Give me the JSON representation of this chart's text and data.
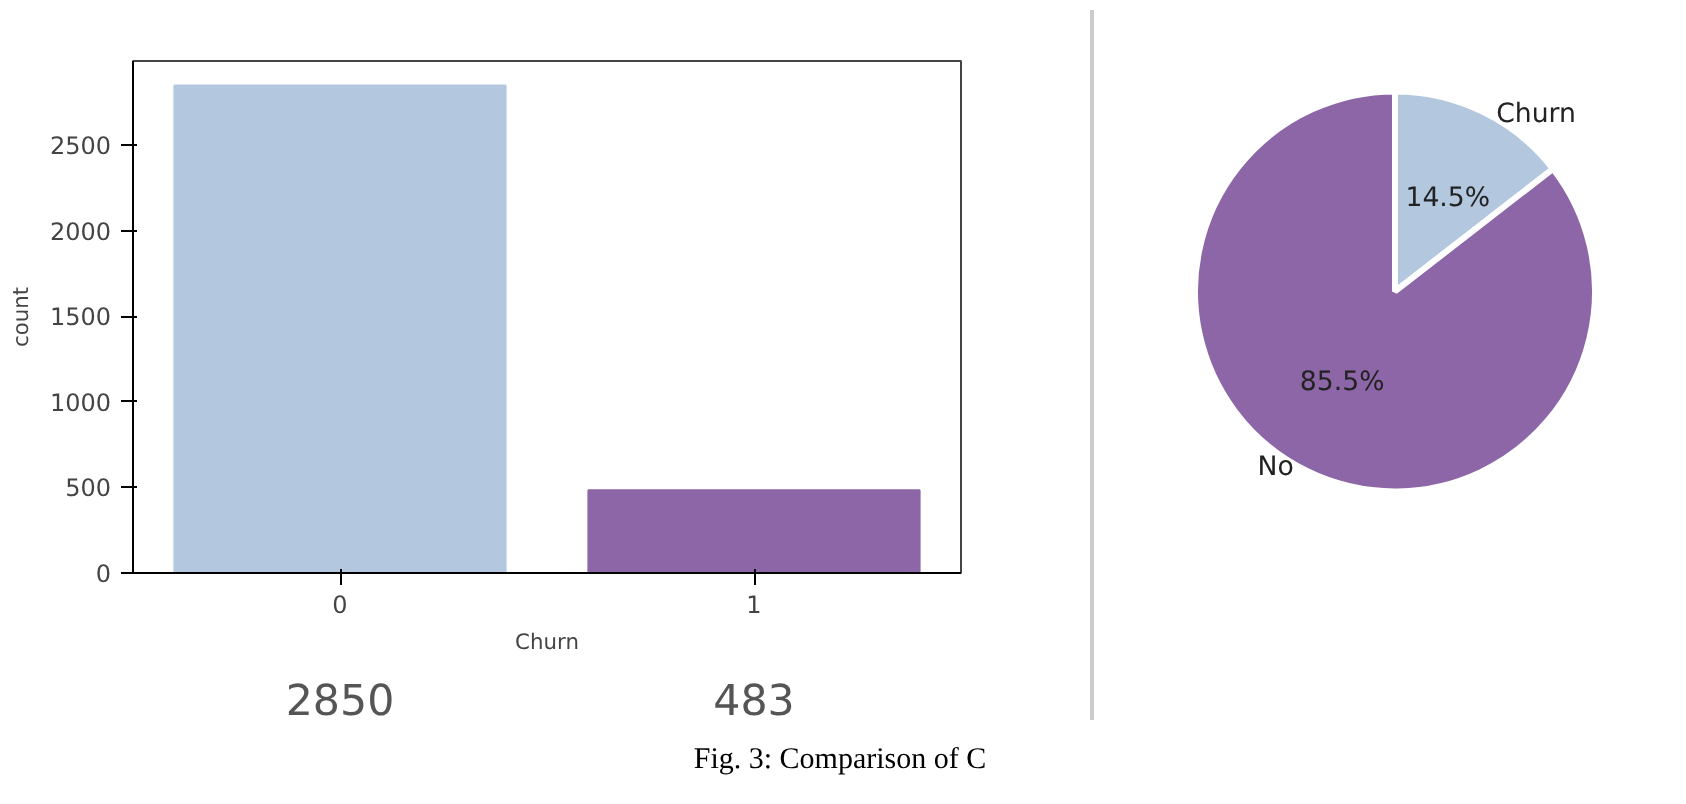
{
  "chart_data": [
    {
      "type": "bar",
      "xlabel": "Churn",
      "ylabel": "count",
      "categories": [
        "0",
        "1"
      ],
      "values": [
        2850,
        483
      ],
      "colors": [
        "#b3c7de",
        "#8c66a6"
      ],
      "ylim": [
        0,
        2992.5
      ],
      "yticks": [
        0,
        500,
        1000,
        1500,
        2000,
        2500
      ],
      "grid": false,
      "data_labels": true,
      "annotations": [
        "Fig. 3: Comparison of C"
      ]
    },
    {
      "type": "pie",
      "categories": [
        "Churn",
        "No"
      ],
      "values": [
        14.5,
        85.5
      ],
      "colors": [
        "#b3c7de",
        "#8c66a6"
      ],
      "value_labels": [
        "14.5%",
        "85.5%"
      ]
    }
  ]
}
